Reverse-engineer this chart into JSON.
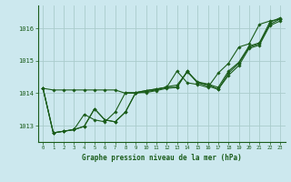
{
  "xlabel": "Graphe pression niveau de la mer (hPa)",
  "x_ticks": [
    0,
    1,
    2,
    3,
    4,
    5,
    6,
    7,
    8,
    9,
    10,
    11,
    12,
    13,
    14,
    15,
    16,
    17,
    18,
    19,
    20,
    21,
    22,
    23
  ],
  "ylim": [
    1012.5,
    1016.7
  ],
  "yticks": [
    1013,
    1014,
    1015,
    1016
  ],
  "bg_color": "#cce8ee",
  "grid_color": "#aacccc",
  "line_color": "#1a5c1a",
  "marker_color": "#1a5c1a",
  "text_color": "#1a5c1a",
  "series_b_x": [
    0,
    1,
    2,
    3,
    4,
    5,
    6,
    7,
    8,
    9,
    10,
    11,
    12,
    13,
    14,
    15,
    16,
    17,
    18,
    19,
    20,
    21,
    22,
    23
  ],
  "series_b_y": [
    1014.15,
    1014.1,
    1014.1,
    1014.1,
    1014.1,
    1014.1,
    1014.1,
    1014.1,
    1014.0,
    1014.0,
    1014.05,
    1014.1,
    1014.2,
    1014.25,
    1014.65,
    1014.35,
    1014.28,
    1014.18,
    1014.68,
    1014.95,
    1015.45,
    1015.55,
    1016.18,
    1016.32
  ],
  "series_a_x": [
    0,
    1,
    2,
    3,
    4,
    5,
    6,
    7,
    8,
    9,
    10,
    11,
    12,
    13,
    14,
    15,
    16,
    17,
    18,
    19,
    20,
    21,
    22,
    23
  ],
  "series_a_y": [
    1014.15,
    1012.78,
    1012.83,
    1012.88,
    1012.98,
    1013.52,
    1013.18,
    1013.12,
    1013.42,
    1014.02,
    1014.08,
    1014.13,
    1014.18,
    1014.18,
    1014.68,
    1014.32,
    1014.27,
    1014.12,
    1014.62,
    1014.92,
    1015.42,
    1015.52,
    1016.12,
    1016.28
  ],
  "series_c_x": [
    0,
    1,
    2,
    3,
    4,
    5,
    6,
    7,
    8,
    9,
    10,
    11,
    12,
    13,
    14,
    15,
    16,
    17,
    18,
    19,
    20,
    21,
    22,
    23
  ],
  "series_c_y": [
    1014.15,
    1012.78,
    1012.83,
    1012.88,
    1013.35,
    1013.18,
    1013.12,
    1013.42,
    1014.02,
    1014.02,
    1014.08,
    1014.13,
    1014.18,
    1014.68,
    1014.32,
    1014.27,
    1014.18,
    1014.62,
    1014.92,
    1015.42,
    1015.52,
    1016.12,
    1016.22,
    1016.28
  ],
  "series_d_x": [
    0,
    1,
    2,
    3,
    4,
    5,
    6,
    7,
    8,
    9,
    10,
    11,
    12,
    13,
    14,
    15,
    16,
    17,
    18,
    19,
    20,
    21,
    22,
    23
  ],
  "series_d_y": [
    1014.15,
    1012.78,
    1012.83,
    1012.88,
    1012.98,
    1013.52,
    1013.18,
    1013.12,
    1013.42,
    1014.02,
    1014.02,
    1014.08,
    1014.15,
    1014.18,
    1014.68,
    1014.32,
    1014.22,
    1014.12,
    1014.55,
    1014.85,
    1015.38,
    1015.48,
    1016.08,
    1016.22
  ]
}
